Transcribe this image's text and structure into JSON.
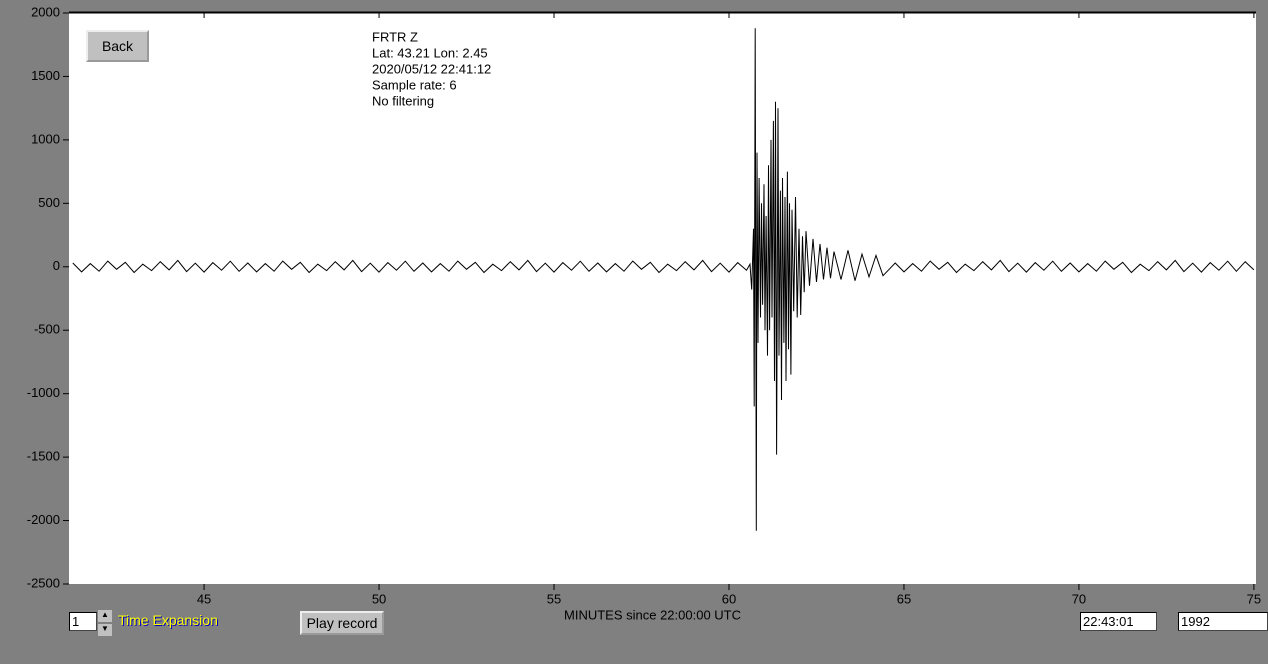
{
  "ui": {
    "back_button": "Back",
    "expansion_value": "1",
    "expansion_label": "Time Expansion",
    "play_button": "Play record",
    "time_box": "22:43:01",
    "year_box": "1992"
  },
  "chart_data": {
    "type": "line",
    "annotations": [
      "FRTR  Z",
      "Lat: 43.21 Lon: 2.45",
      "2020/05/12 22:41:12",
      "Sample rate: 6",
      "No filtering"
    ],
    "xlabel": "MINUTES since 22:00:00 UTC",
    "xlim": [
      41.14,
      75.06
    ],
    "xticks": [
      45,
      50,
      55,
      60,
      65,
      70,
      75
    ],
    "ylim": [
      -2500,
      2000
    ],
    "yticks": [
      -2500,
      -2000,
      -1500,
      -1000,
      -500,
      0,
      500,
      1000,
      1500,
      2000
    ],
    "color": "#000000",
    "x": [
      41.25,
      41.5,
      41.75,
      42,
      42.25,
      42.5,
      42.75,
      43,
      43.25,
      43.5,
      43.75,
      44,
      44.25,
      44.5,
      44.75,
      45,
      45.25,
      45.5,
      45.75,
      46,
      46.25,
      46.5,
      46.75,
      47,
      47.25,
      47.5,
      47.75,
      48,
      48.25,
      48.5,
      48.75,
      49,
      49.25,
      49.5,
      49.75,
      50,
      50.25,
      50.5,
      50.75,
      51,
      51.25,
      51.5,
      51.75,
      52,
      52.25,
      52.5,
      52.75,
      53,
      53.25,
      53.5,
      53.75,
      54,
      54.25,
      54.5,
      54.75,
      55,
      55.25,
      55.5,
      55.75,
      56,
      56.25,
      56.5,
      56.75,
      57,
      57.25,
      57.5,
      57.75,
      58,
      58.25,
      58.5,
      58.75,
      59,
      59.25,
      59.5,
      59.75,
      60,
      60.25,
      60.5,
      60.6,
      60.65,
      60.7,
      60.72,
      60.75,
      60.78,
      60.8,
      60.83,
      60.86,
      60.9,
      60.93,
      60.96,
      61,
      61.03,
      61.06,
      61.1,
      61.13,
      61.16,
      61.2,
      61.23,
      61.27,
      61.3,
      61.33,
      61.36,
      61.4,
      61.43,
      61.47,
      61.5,
      61.53,
      61.57,
      61.6,
      61.63,
      61.67,
      61.7,
      61.73,
      61.77,
      61.8,
      61.85,
      61.9,
      61.95,
      62,
      62.05,
      62.1,
      62.15,
      62.2,
      62.3,
      62.4,
      62.5,
      62.6,
      62.7,
      62.8,
      62.9,
      63,
      63.2,
      63.4,
      63.6,
      63.8,
      64,
      64.2,
      64.4,
      64.75,
      65,
      65.25,
      65.5,
      65.75,
      66,
      66.25,
      66.5,
      66.75,
      67,
      67.25,
      67.5,
      67.75,
      68,
      68.25,
      68.5,
      68.75,
      69,
      69.25,
      69.5,
      69.75,
      70,
      70.25,
      70.5,
      70.75,
      71,
      71.25,
      71.5,
      71.75,
      72,
      72.25,
      72.5,
      72.75,
      73,
      73.25,
      73.5,
      73.75,
      74,
      74.25,
      74.5,
      74.75,
      75
    ],
    "values": [
      30,
      -40,
      25,
      -35,
      45,
      -20,
      35,
      -45,
      20,
      -30,
      40,
      -25,
      50,
      -38,
      28,
      -42,
      33,
      -27,
      44,
      -36,
      30,
      -40,
      25,
      -35,
      45,
      -20,
      35,
      -45,
      20,
      -30,
      40,
      -25,
      50,
      -38,
      28,
      -42,
      33,
      -27,
      44,
      -36,
      30,
      -40,
      25,
      -35,
      45,
      -20,
      35,
      -45,
      20,
      -30,
      40,
      -25,
      50,
      -38,
      28,
      -42,
      33,
      -27,
      44,
      -36,
      30,
      -40,
      25,
      -35,
      45,
      -20,
      35,
      -45,
      20,
      -30,
      40,
      -25,
      50,
      -38,
      28,
      -42,
      33,
      -27,
      20,
      -180,
      300,
      -1100,
      1880,
      -2080,
      900,
      -600,
      700,
      -400,
      500,
      -300,
      650,
      -500,
      400,
      -700,
      800,
      -500,
      1000,
      -400,
      1150,
      -900,
      1300,
      -1480,
      1250,
      -700,
      600,
      -1050,
      700,
      -600,
      550,
      -900,
      750,
      -650,
      500,
      -850,
      450,
      -350,
      550,
      -400,
      300,
      -380,
      240,
      -200,
      280,
      -150,
      220,
      -120,
      180,
      -100,
      150,
      -90,
      120,
      -100,
      130,
      -110,
      100,
      -80,
      90,
      -70,
      30,
      -40,
      25,
      -35,
      45,
      -20,
      35,
      -45,
      20,
      -30,
      40,
      -25,
      50,
      -38,
      28,
      -42,
      33,
      -27,
      44,
      -36,
      30,
      -40,
      25,
      -35,
      45,
      -20,
      35,
      -45,
      20,
      -30,
      40,
      -25,
      50,
      -38,
      28,
      -42,
      33,
      -27,
      44,
      -36,
      40,
      -25
    ]
  }
}
